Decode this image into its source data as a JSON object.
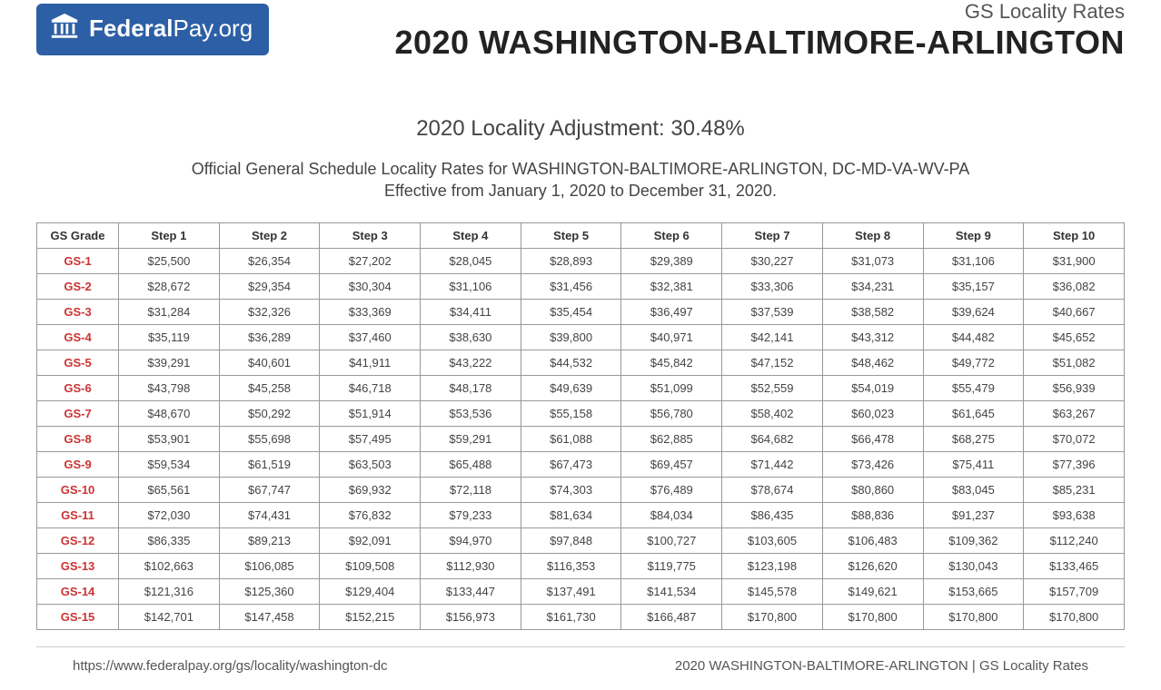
{
  "header": {
    "logo_prefix": "Federal",
    "logo_suffix": "Pay.org",
    "subtitle_top": "GS Locality Rates",
    "main_title": "2020 WASHINGTON-BALTIMORE-ARLINGTON"
  },
  "adjustment_line": "2020 Locality Adjustment: 30.48%",
  "description_line1": "Official General Schedule Locality Rates for WASHINGTON-BALTIMORE-ARLINGTON, DC-MD-VA-WV-PA",
  "description_line2": "Effective from January 1, 2020 to December 31, 2020.",
  "table": {
    "columns": [
      "GS Grade",
      "Step 1",
      "Step 2",
      "Step 3",
      "Step 4",
      "Step 5",
      "Step 6",
      "Step 7",
      "Step 8",
      "Step 9",
      "Step 10"
    ],
    "rows": [
      {
        "grade": "GS-1",
        "values": [
          "$25,500",
          "$26,354",
          "$27,202",
          "$28,045",
          "$28,893",
          "$29,389",
          "$30,227",
          "$31,073",
          "$31,106",
          "$31,900"
        ]
      },
      {
        "grade": "GS-2",
        "values": [
          "$28,672",
          "$29,354",
          "$30,304",
          "$31,106",
          "$31,456",
          "$32,381",
          "$33,306",
          "$34,231",
          "$35,157",
          "$36,082"
        ]
      },
      {
        "grade": "GS-3",
        "values": [
          "$31,284",
          "$32,326",
          "$33,369",
          "$34,411",
          "$35,454",
          "$36,497",
          "$37,539",
          "$38,582",
          "$39,624",
          "$40,667"
        ]
      },
      {
        "grade": "GS-4",
        "values": [
          "$35,119",
          "$36,289",
          "$37,460",
          "$38,630",
          "$39,800",
          "$40,971",
          "$42,141",
          "$43,312",
          "$44,482",
          "$45,652"
        ]
      },
      {
        "grade": "GS-5",
        "values": [
          "$39,291",
          "$40,601",
          "$41,911",
          "$43,222",
          "$44,532",
          "$45,842",
          "$47,152",
          "$48,462",
          "$49,772",
          "$51,082"
        ]
      },
      {
        "grade": "GS-6",
        "values": [
          "$43,798",
          "$45,258",
          "$46,718",
          "$48,178",
          "$49,639",
          "$51,099",
          "$52,559",
          "$54,019",
          "$55,479",
          "$56,939"
        ]
      },
      {
        "grade": "GS-7",
        "values": [
          "$48,670",
          "$50,292",
          "$51,914",
          "$53,536",
          "$55,158",
          "$56,780",
          "$58,402",
          "$60,023",
          "$61,645",
          "$63,267"
        ]
      },
      {
        "grade": "GS-8",
        "values": [
          "$53,901",
          "$55,698",
          "$57,495",
          "$59,291",
          "$61,088",
          "$62,885",
          "$64,682",
          "$66,478",
          "$68,275",
          "$70,072"
        ]
      },
      {
        "grade": "GS-9",
        "values": [
          "$59,534",
          "$61,519",
          "$63,503",
          "$65,488",
          "$67,473",
          "$69,457",
          "$71,442",
          "$73,426",
          "$75,411",
          "$77,396"
        ]
      },
      {
        "grade": "GS-10",
        "values": [
          "$65,561",
          "$67,747",
          "$69,932",
          "$72,118",
          "$74,303",
          "$76,489",
          "$78,674",
          "$80,860",
          "$83,045",
          "$85,231"
        ]
      },
      {
        "grade": "GS-11",
        "values": [
          "$72,030",
          "$74,431",
          "$76,832",
          "$79,233",
          "$81,634",
          "$84,034",
          "$86,435",
          "$88,836",
          "$91,237",
          "$93,638"
        ]
      },
      {
        "grade": "GS-12",
        "values": [
          "$86,335",
          "$89,213",
          "$92,091",
          "$94,970",
          "$97,848",
          "$100,727",
          "$103,605",
          "$106,483",
          "$109,362",
          "$112,240"
        ]
      },
      {
        "grade": "GS-13",
        "values": [
          "$102,663",
          "$106,085",
          "$109,508",
          "$112,930",
          "$116,353",
          "$119,775",
          "$123,198",
          "$126,620",
          "$130,043",
          "$133,465"
        ]
      },
      {
        "grade": "GS-14",
        "values": [
          "$121,316",
          "$125,360",
          "$129,404",
          "$133,447",
          "$137,491",
          "$141,534",
          "$145,578",
          "$149,621",
          "$153,665",
          "$157,709"
        ]
      },
      {
        "grade": "GS-15",
        "values": [
          "$142,701",
          "$147,458",
          "$152,215",
          "$156,973",
          "$161,730",
          "$166,487",
          "$170,800",
          "$170,800",
          "$170,800",
          "$170,800"
        ]
      }
    ],
    "grade_color": "#cc3333",
    "border_color": "#999999",
    "header_fontweight": "700"
  },
  "footer": {
    "left": "https://www.federalpay.org/gs/locality/washington-dc",
    "right": "2020 WASHINGTON-BALTIMORE-ARLINGTON | GS Locality Rates"
  }
}
